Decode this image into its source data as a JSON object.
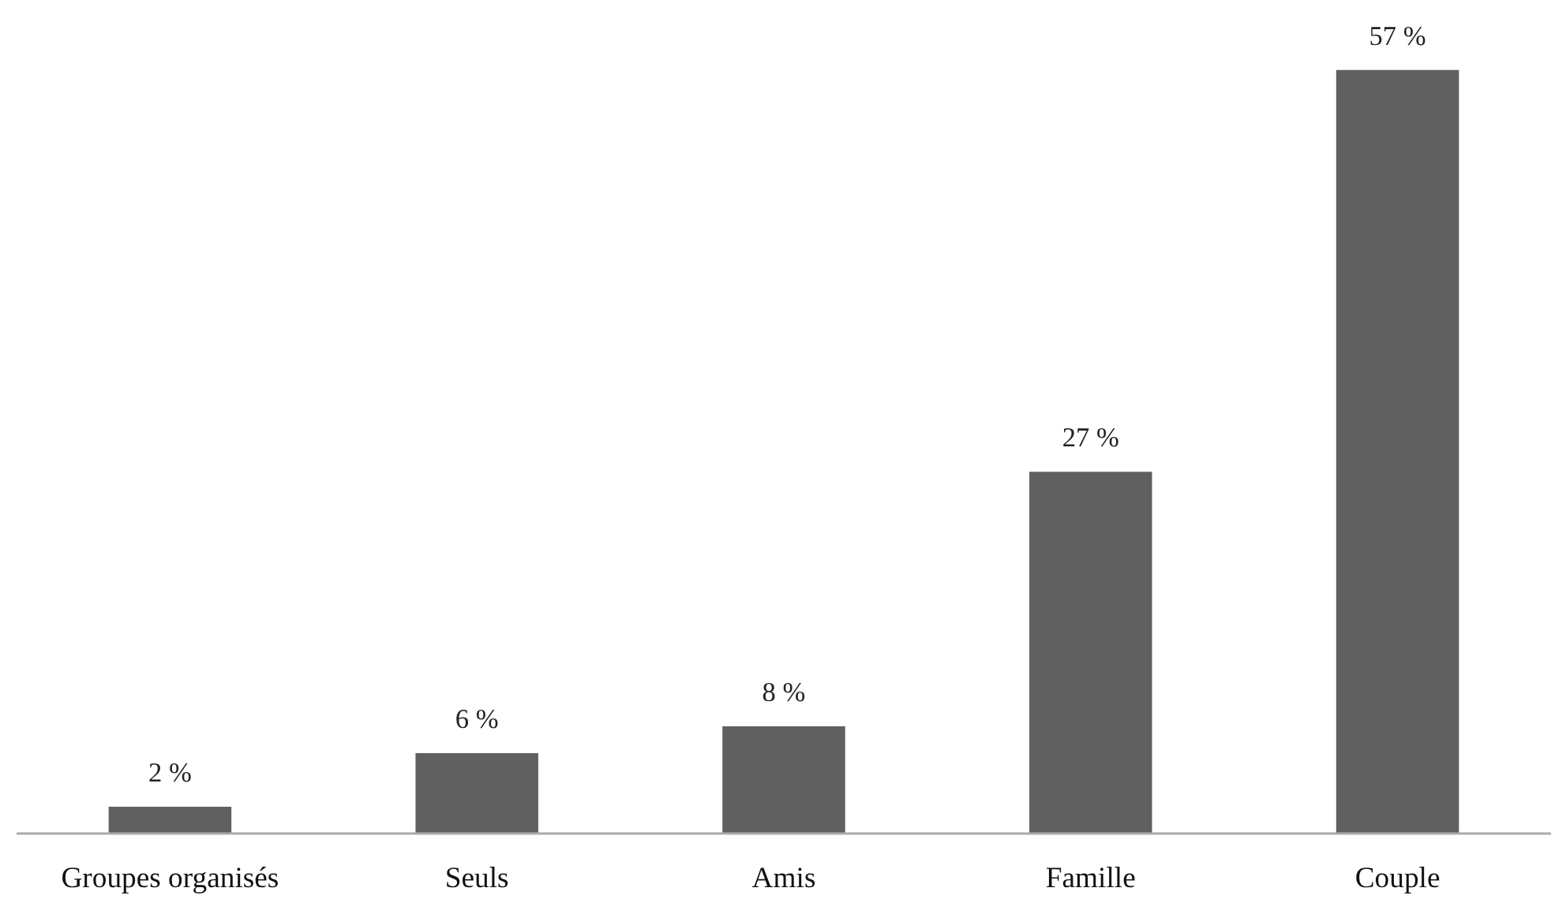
{
  "chart_data": {
    "type": "bar",
    "categories": [
      "Groupes organisés",
      "Seuls",
      "Amis",
      "Famille",
      "Couple"
    ],
    "values": [
      2,
      6,
      8,
      27,
      57
    ],
    "value_labels": [
      "2 %",
      "6 %",
      "8 %",
      "27 %",
      "57 %"
    ],
    "color": "#606060"
  }
}
